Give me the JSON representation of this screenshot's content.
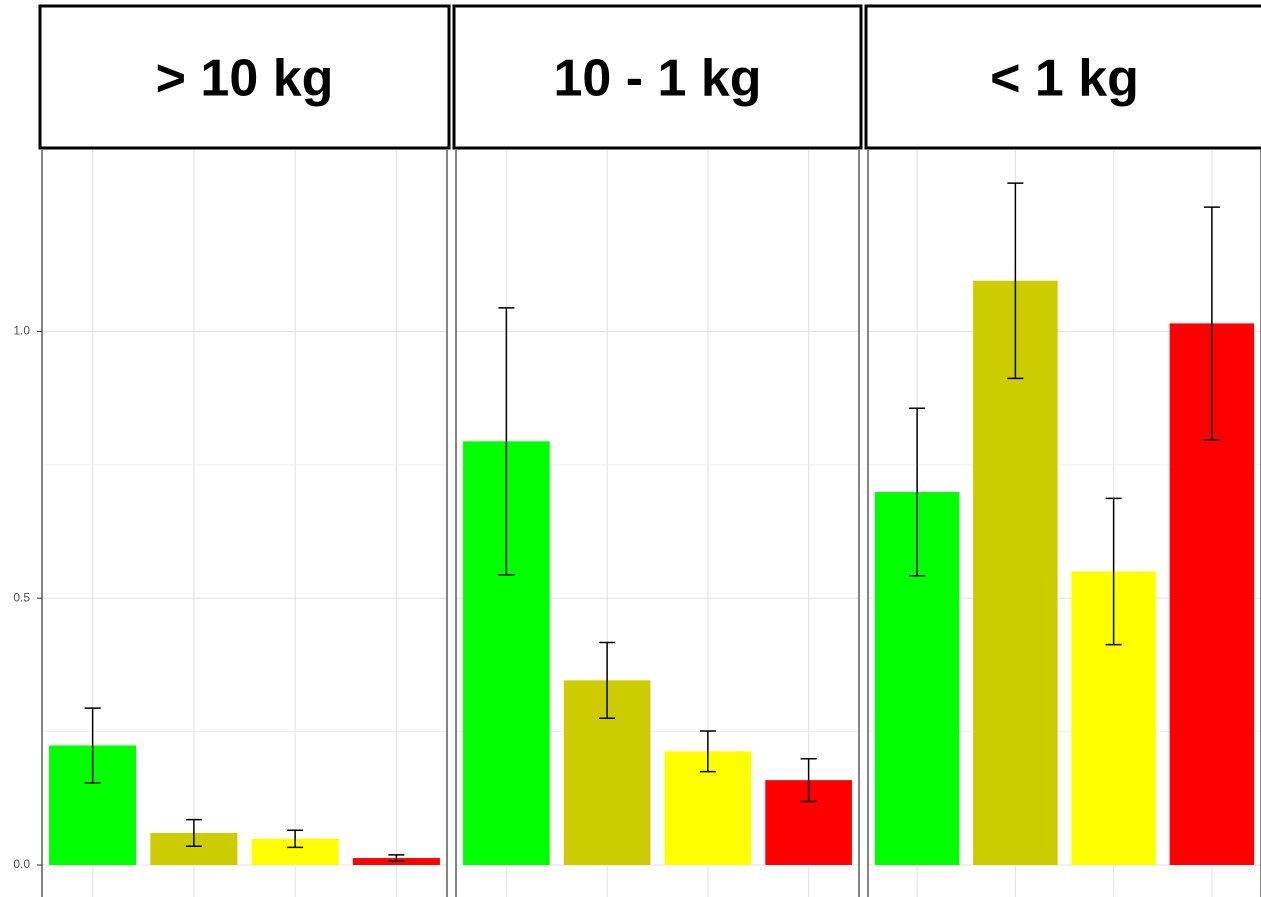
{
  "chart_data": {
    "type": "bar",
    "ylim": [
      -0.06,
      1.34
    ],
    "yticks": [
      {
        "value": 0,
        "label": "0.0"
      },
      0.5,
      {
        "value": 1,
        "label": "1.0"
      }
    ],
    "grid": true,
    "colors": [
      "#00ff00",
      "#cccc00",
      "#ffff00",
      "#ff0000"
    ],
    "panels": [
      {
        "title": "> 10 kg",
        "values": [
          0.224,
          0.06,
          0.049,
          0.013
        ],
        "errors": [
          0.07,
          0.025,
          0.016,
          0.006
        ]
      },
      {
        "title": "10 - 1 kg",
        "values": [
          0.794,
          0.346,
          0.213,
          0.159
        ],
        "errors": [
          0.25,
          0.071,
          0.038,
          0.04
        ]
      },
      {
        "title": "< 1 kg",
        "values": [
          0.699,
          1.095,
          0.55,
          1.015
        ],
        "errors": [
          0.157,
          0.183,
          0.137,
          0.218
        ]
      }
    ]
  }
}
